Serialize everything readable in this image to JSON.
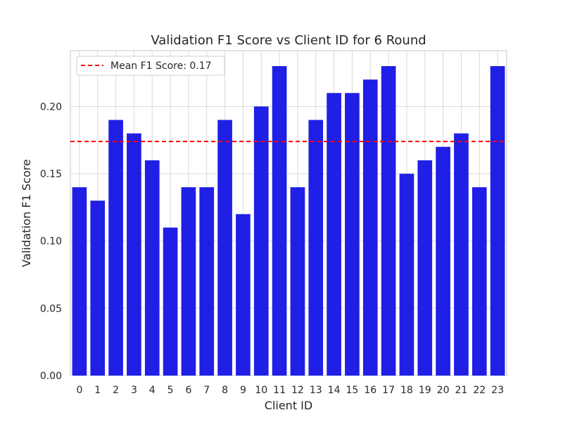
{
  "chart_data": {
    "type": "bar",
    "title": "Validation F1 Score vs Client ID for 6 Round",
    "xlabel": "Client ID",
    "ylabel": "Validation F1 Score",
    "categories": [
      "0",
      "1",
      "2",
      "3",
      "4",
      "5",
      "6",
      "7",
      "8",
      "9",
      "10",
      "11",
      "12",
      "13",
      "14",
      "15",
      "16",
      "17",
      "18",
      "19",
      "20",
      "21",
      "22",
      "23"
    ],
    "values": [
      0.14,
      0.13,
      0.19,
      0.18,
      0.16,
      0.11,
      0.14,
      0.14,
      0.19,
      0.12,
      0.2,
      0.23,
      0.14,
      0.19,
      0.21,
      0.21,
      0.22,
      0.23,
      0.15,
      0.16,
      0.17,
      0.18,
      0.14,
      0.23
    ],
    "ylim": [
      0,
      0.2415
    ],
    "yticks": [
      0.0,
      0.05,
      0.1,
      0.15,
      0.2
    ],
    "ytick_labels": [
      "0.00",
      "0.05",
      "0.10",
      "0.15",
      "0.20"
    ],
    "mean_line": {
      "value": 0.174,
      "label": "Mean F1 Score: 0.17",
      "color": "#ff0000",
      "style": "dashed"
    },
    "bar_color": "#1f1fe6",
    "grid": true,
    "legend_position": "top-left"
  }
}
